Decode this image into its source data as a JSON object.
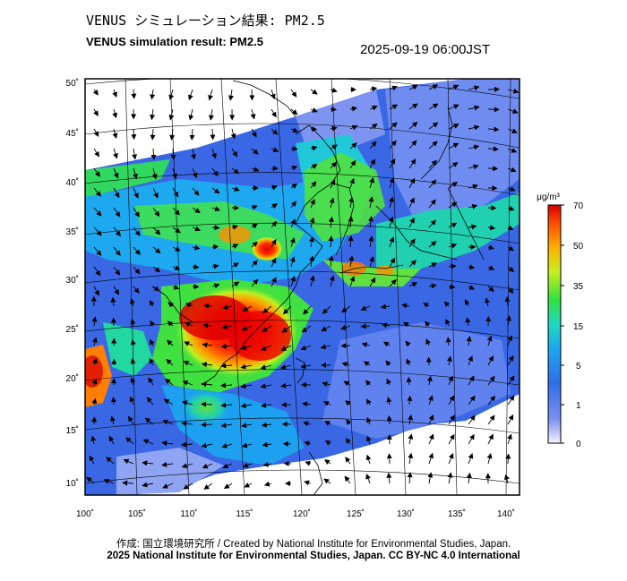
{
  "title_jp": "VENUS シミュレーション結果: PM2.5",
  "title_en": "VENUS simulation result: PM2.5",
  "timestamp": "2025-09-19 06:00JST",
  "footer": {
    "credit": "作成: 国立環境研究所 / Created by National Institute for Environmental Studies, Japan.",
    "copyright": "2025 National Institute for Environmental Studies, Japan. CC BY-NC 4.0 International"
  },
  "map": {
    "lon_ticks": [
      "100˚",
      "105˚",
      "110˚",
      "115˚",
      "120˚",
      "125˚",
      "130˚",
      "135˚",
      "140˚"
    ],
    "lat_ticks": [
      "50˚",
      "45˚",
      "40˚",
      "35˚",
      "30˚",
      "25˚",
      "20˚",
      "15˚",
      "10˚"
    ]
  },
  "colorbar": {
    "unit": "μg/m³",
    "labels": [
      "70",
      "50",
      "35",
      "15",
      "5",
      "1",
      "0"
    ],
    "colors": [
      "#f0f0ff",
      "#3a5ae0",
      "#2aa0f0",
      "#20e0c0",
      "#40e040",
      "#c0f020",
      "#ffd000",
      "#ff6000",
      "#e00000"
    ]
  }
}
